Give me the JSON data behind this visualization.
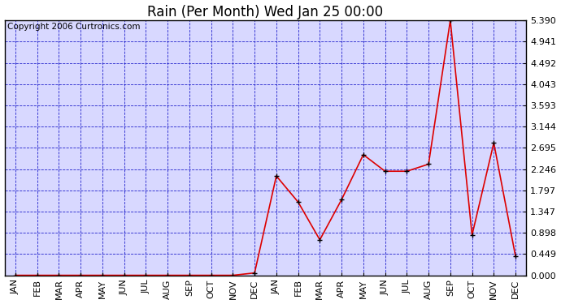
{
  "title": "Rain (Per Month) Wed Jan 25 00:00",
  "copyright": "Copyright 2006 Curtronics.com",
  "x_labels": [
    "JAN",
    "FEB",
    "MAR",
    "APR",
    "MAY",
    "JUN",
    "JUL",
    "AUG",
    "SEP",
    "OCT",
    "NOV",
    "DEC",
    "JAN",
    "FEB",
    "MAR",
    "APR",
    "MAY",
    "JUN",
    "JUL",
    "AUG",
    "SEP",
    "OCT",
    "NOV",
    "DEC"
  ],
  "y_values": [
    0.0,
    0.0,
    0.0,
    0.0,
    0.0,
    0.0,
    0.0,
    0.0,
    0.0,
    0.0,
    0.0,
    0.05,
    2.1,
    1.55,
    0.75,
    1.6,
    2.55,
    2.2,
    2.2,
    2.35,
    5.39,
    0.85,
    2.8,
    0.4
  ],
  "y_ticks": [
    0.0,
    0.449,
    0.898,
    1.347,
    1.797,
    2.246,
    2.695,
    3.144,
    3.593,
    4.043,
    4.492,
    4.941,
    5.39
  ],
  "y_min": 0.0,
  "y_max": 5.39,
  "line_color": "#dd0000",
  "marker_color": "#000000",
  "fig_bg_color": "#ffffff",
  "plot_bg_color": "#d8d8ff",
  "grid_color": "#2222cc",
  "border_color": "#000000",
  "title_color": "#000000",
  "copyright_color": "#000000",
  "title_fontsize": 12,
  "copyright_fontsize": 7.5,
  "tick_fontsize": 8,
  "marker_size": 4
}
